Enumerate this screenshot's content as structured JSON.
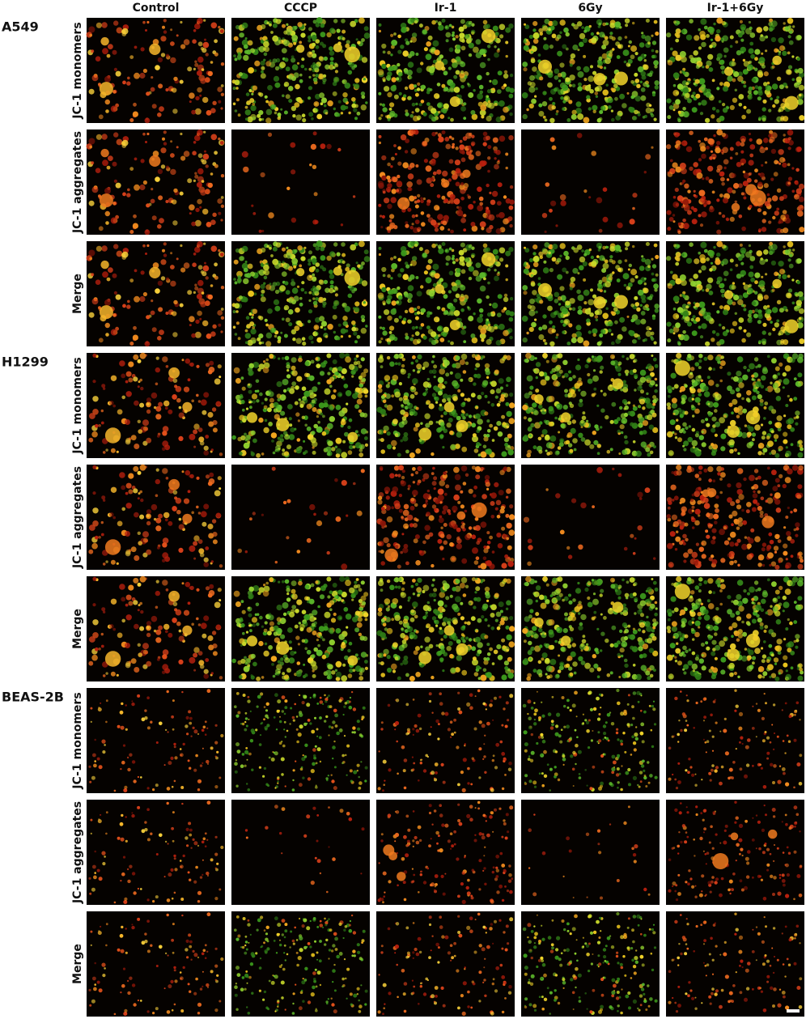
{
  "column_headers": [
    "Control",
    "CCCP",
    "Ir-1",
    "6Gy",
    "Ir-1+6Gy"
  ],
  "groups": [
    {
      "label": "A549",
      "rows": [
        "JC-1 monomers",
        "JC-1 aggregates",
        "Merge"
      ]
    },
    {
      "label": "H1299",
      "rows": [
        "JC-1 monomers",
        "JC-1 aggregates",
        "Merge"
      ]
    },
    {
      "label": "BEAS-2B",
      "rows": [
        "JC-1 monomers",
        "JC-1 aggregates",
        "Merge"
      ]
    }
  ]
}
